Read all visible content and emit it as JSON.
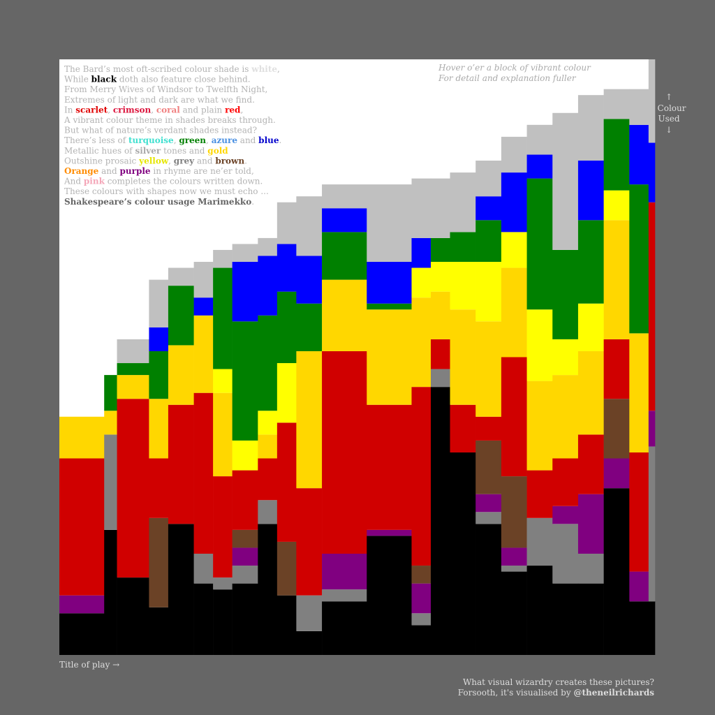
{
  "chart_data": {
    "type": "marimekko",
    "ylim": [
      0,
      100
    ],
    "widths": [
      7,
      2,
      5,
      3,
      4,
      3,
      3,
      4,
      3,
      3,
      4,
      7,
      7,
      3,
      3,
      4,
      4,
      4,
      4,
      4,
      4,
      4,
      3,
      1
    ],
    "series": [
      {
        "color": "#000000",
        "values": [
          7,
          21,
          13,
          8,
          22,
          12,
          11,
          12,
          22,
          10,
          4,
          9,
          20,
          5,
          45,
          34,
          22,
          14,
          15,
          12,
          12,
          28,
          9,
          9
        ]
      },
      {
        "color": "#808080",
        "values": [
          0,
          16,
          0,
          0,
          0,
          5,
          2,
          3,
          4,
          0,
          6,
          2,
          0,
          2,
          3,
          0,
          2,
          1,
          8,
          10,
          5,
          0,
          0,
          26
        ]
      },
      {
        "color": "#800080",
        "values": [
          3,
          0,
          0,
          0,
          0,
          0,
          0,
          3,
          0,
          0,
          0,
          6,
          1,
          5,
          0,
          0,
          3,
          3,
          0,
          3,
          10,
          5,
          5,
          6
        ]
      },
      {
        "color": "#6b4226",
        "values": [
          0,
          0,
          0,
          15,
          0,
          0,
          0,
          3,
          0,
          9,
          0,
          0,
          0,
          3,
          0,
          0,
          9,
          12,
          0,
          0,
          0,
          10,
          0,
          0
        ]
      },
      {
        "color": "#d00000",
        "values": [
          23,
          0,
          30,
          10,
          20,
          27,
          17,
          10,
          7,
          20,
          18,
          34,
          21,
          30,
          5,
          8,
          4,
          20,
          8,
          8,
          10,
          10,
          20,
          35
        ]
      },
      {
        "color": "#ffd700",
        "values": [
          7,
          4,
          4,
          10,
          10,
          13,
          14,
          0,
          4,
          0,
          23,
          12,
          16,
          15,
          8,
          16,
          16,
          15,
          15,
          14,
          14,
          20,
          20,
          0
        ]
      },
      {
        "color": "#ffff00",
        "values": [
          0,
          0,
          0,
          0,
          0,
          0,
          4,
          5,
          4,
          10,
          0,
          0,
          0,
          5,
          5,
          8,
          10,
          6,
          12,
          6,
          8,
          5,
          0,
          0
        ]
      },
      {
        "color": "#008000",
        "values": [
          0,
          6,
          2,
          8,
          10,
          0,
          17,
          20,
          16,
          12,
          8,
          8,
          1,
          0,
          4,
          5,
          7,
          0,
          22,
          15,
          14,
          12,
          25,
          0
        ]
      },
      {
        "color": "#0000ff",
        "values": [
          0,
          0,
          0,
          4,
          0,
          3,
          0,
          10,
          10,
          8,
          8,
          4,
          7,
          5,
          0,
          0,
          4,
          10,
          4,
          0,
          10,
          0,
          10,
          10
        ]
      },
      {
        "color": "#c0c0c0",
        "values": [
          0,
          0,
          4,
          8,
          3,
          6,
          3,
          3,
          3,
          7,
          10,
          4,
          13,
          10,
          10,
          10,
          6,
          6,
          5,
          23,
          11,
          5,
          6,
          14
        ]
      }
    ]
  },
  "poem": [
    [
      {
        "text": "The Bard’s most oft-scribed colour shade is "
      },
      {
        "text": "white",
        "color": "#e0e0e0",
        "bold": true
      },
      {
        "text": ","
      }
    ],
    [
      {
        "text": "While "
      },
      {
        "text": "black",
        "color": "#000000",
        "bold": true
      },
      {
        "text": " doth also feature close behind."
      }
    ],
    [
      {
        "text": "From Merry Wives of Windsor to Twelfth Night,"
      }
    ],
    [
      {
        "text": "Extremes of light and dark are what we find."
      }
    ],
    [
      {
        "text": "In "
      },
      {
        "text": "scarlet",
        "color": "#e00000",
        "bold": true
      },
      {
        "text": ", "
      },
      {
        "text": "crimson",
        "color": "#dc143c",
        "bold": true
      },
      {
        "text": ", "
      },
      {
        "text": "coral",
        "color": "#f08080",
        "bold": true
      },
      {
        "text": " and plain "
      },
      {
        "text": "red",
        "color": "#ff0000",
        "bold": true
      },
      {
        "text": ","
      }
    ],
    [
      {
        "text": "A vibrant colour theme in shades breaks through."
      }
    ],
    [
      {
        "text": "But what of nature’s verdant shades instead?"
      }
    ],
    [
      {
        "text": "There’s less of "
      },
      {
        "text": "turquoise",
        "color": "#40e0d0",
        "bold": true
      },
      {
        "text": ", "
      },
      {
        "text": "green",
        "color": "#008000",
        "bold": true
      },
      {
        "text": ", "
      },
      {
        "text": "azure",
        "color": "#4a90e2",
        "bold": true
      },
      {
        "text": " and "
      },
      {
        "text": "blue",
        "color": "#0000cc",
        "bold": true
      },
      {
        "text": "."
      }
    ],
    [
      {
        "text": "Metallic hues of "
      },
      {
        "text": "silver",
        "color": "#aaaaaa",
        "bold": true
      },
      {
        "text": " tones and "
      },
      {
        "text": "gold",
        "color": "#ffd700",
        "bold": true
      }
    ],
    [
      {
        "text": "Outshine prosaic "
      },
      {
        "text": "yellow",
        "color": "#e6e600",
        "bold": true
      },
      {
        "text": ", "
      },
      {
        "text": "grey",
        "color": "#808080",
        "bold": true
      },
      {
        "text": " and "
      },
      {
        "text": "brown",
        "color": "#6b4226",
        "bold": true
      },
      {
        "text": "."
      }
    ],
    [
      {
        "text": "Orange",
        "color": "#ff8c00",
        "bold": true
      },
      {
        "text": " and "
      },
      {
        "text": "purple",
        "color": "#800080",
        "bold": true
      },
      {
        "text": " in rhyme are ne’er told,"
      }
    ],
    [
      {
        "text": "And "
      },
      {
        "text": "pink",
        "color": "#f4a6b8",
        "bold": true
      },
      {
        "text": " completes the colours written down."
      }
    ],
    [
      {
        "text": "These colours with shapes now we must echo ..."
      }
    ],
    [
      {
        "text": "Shakespeare’s colour usage Marimekko",
        "color": "#666666",
        "bold": true
      },
      {
        "text": "."
      }
    ]
  ],
  "hint": [
    "Hover o’er a block of vibrant colour",
    "For detail and explanation fuller"
  ],
  "side_label": [
    "↑",
    "Colour",
    "Used",
    "↓"
  ],
  "x_label": "Title of play →",
  "footer": {
    "line1": "What visual wizardry creates these pictures?",
    "line2": "Forsooth, it's visualised by ",
    "handle": "@theneilrichards"
  }
}
